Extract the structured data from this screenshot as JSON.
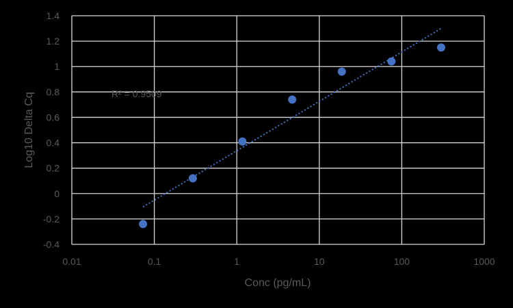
{
  "chart_data": {
    "type": "scatter",
    "title": "",
    "xlabel": "Conc (pg/mL)",
    "ylabel": "Log10 Delta Cq",
    "xscale": "log",
    "xlim": [
      0.01,
      1000
    ],
    "ylim": [
      -0.4,
      1.4
    ],
    "x_ticks": [
      "0.01",
      "0.1",
      "1",
      "10",
      "100",
      "1000"
    ],
    "y_ticks": [
      "-0.4",
      "-0.2",
      "0",
      "0.2",
      "0.4",
      "0.6",
      "0.8",
      "1",
      "1.2",
      "1.4"
    ],
    "grid": true,
    "legend": null,
    "series": [
      {
        "name": "Log10 Delta Cq",
        "color": "#4472C4",
        "x": [
          0.073,
          0.293,
          1.17,
          4.69,
          18.75,
          75,
          300
        ],
        "y": [
          -0.24,
          0.12,
          0.41,
          0.74,
          0.96,
          1.04,
          1.15
        ]
      }
    ],
    "trendline": {
      "type": "logarithmic",
      "style": "dotted",
      "color": "#4472C4",
      "x_range": [
        0.073,
        300
      ],
      "y_range": [
        -0.105,
        1.3
      ],
      "r_squared_label": "R² = 0.9509"
    },
    "annotations": [
      "R² = 0.9509"
    ]
  },
  "labels": {
    "r2": "R² = 0.9509",
    "xlabel": "Conc (pg/mL)",
    "ylabel": "Log10 Delta Cq"
  }
}
